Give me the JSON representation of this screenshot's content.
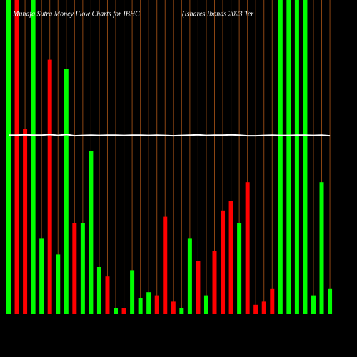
{
  "chart_data": {
    "type": "bar",
    "title": "Munafa Sutra  Money Flow  Charts for IBHC",
    "subtitle": "(Ishares Ibonds 2023 Ter",
    "categories": [
      null,
      null,
      null,
      null,
      null,
      null,
      null,
      null,
      null,
      null,
      null,
      null,
      null,
      null,
      null,
      null,
      null,
      null,
      null,
      null,
      null,
      null,
      null,
      null,
      null,
      null,
      null,
      null,
      null,
      null,
      null,
      null,
      null,
      null,
      null,
      null,
      null,
      null,
      null,
      null
    ],
    "values": [
      100,
      100,
      59,
      100,
      24,
      81,
      19,
      78,
      29,
      29,
      52,
      15,
      12,
      2,
      2,
      14,
      5,
      7,
      6,
      31,
      4,
      2,
      24,
      17,
      6,
      20,
      33,
      36,
      29,
      42,
      3,
      4,
      8,
      100,
      100,
      100,
      100,
      6,
      42,
      8
    ],
    "bar_colors": [
      "#00ff00",
      "#ff0000",
      "#ff0000",
      "#00ff00",
      "#00ff00",
      "#ff0000",
      "#00ff00",
      "#00ff00",
      "#ff0000",
      "#00ff00",
      "#00ff00",
      "#00ff00",
      "#ff0000",
      "#00ff00",
      "#ff0000",
      "#00ff00",
      "#00ff00",
      "#00ff00",
      "#ff0000",
      "#ff0000",
      "#ff0000",
      "#00ff00",
      "#00ff00",
      "#ff0000",
      "#00ff00",
      "#ff0000",
      "#ff0000",
      "#ff0000",
      "#00ff00",
      "#ff0000",
      "#ff0000",
      "#ff0000",
      "#ff0000",
      "#00ff00",
      "#00ff00",
      "#00ff00",
      "#00ff00",
      "#00ff00",
      "#00ff00",
      "#00ff00"
    ],
    "line_values": [
      57,
      57,
      57.1,
      57,
      57,
      57.2,
      56.9,
      57.2,
      56.8,
      56.9,
      57,
      56.9,
      57,
      57,
      56.9,
      57,
      57,
      56.9,
      57,
      56.9,
      56.8,
      56.9,
      57,
      57.1,
      56.9,
      57,
      57,
      57.1,
      57,
      56.8,
      56.8,
      56.9,
      57,
      56.9,
      56.9,
      57,
      57,
      56.9,
      57,
      56.8
    ],
    "line_color": "#ffffff",
    "grid": true,
    "grid_color": "#8b4513",
    "ylim": [
      0,
      100
    ]
  }
}
